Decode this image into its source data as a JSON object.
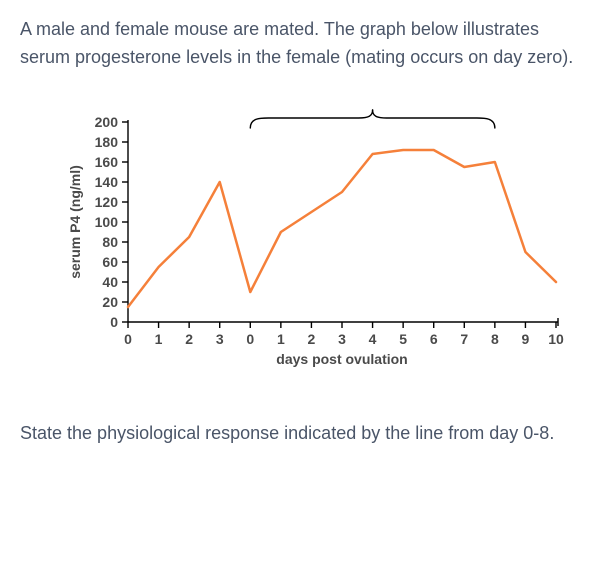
{
  "question": {
    "intro": "A male and female mouse are mated. The graph below illustrates serum progesterone levels in the female (mating occurs on day zero).",
    "prompt": "State the physiological response indicated by the line from day 0-8."
  },
  "chart": {
    "type": "line",
    "background_color": "#ffffff",
    "axis_color": "#000000",
    "line_color": "#f5803a",
    "line_width": 2.5,
    "brace_color": "#000000",
    "ylabel": "serum P4 (ng/ml)",
    "xlabel": "days post ovulation",
    "ylim": [
      0,
      200
    ],
    "ytick_step": 20,
    "yticks": [
      0,
      20,
      40,
      60,
      80,
      100,
      120,
      140,
      160,
      180,
      200
    ],
    "x_tick_labels": [
      "0",
      "1",
      "2",
      "3",
      "0",
      "1",
      "2",
      "3",
      "4",
      "5",
      "6",
      "7",
      "8",
      "9",
      "10"
    ],
    "x_points_index": [
      0,
      1,
      2,
      3,
      4,
      5,
      6,
      7,
      8,
      9,
      10,
      11,
      12,
      13,
      14
    ],
    "series_y": [
      15,
      55,
      85,
      140,
      30,
      90,
      110,
      130,
      168,
      172,
      172,
      155,
      160,
      70,
      40
    ],
    "brace_start_index": 4,
    "brace_end_index": 12,
    "label_fontsize": 14,
    "label_fontweight": 700
  }
}
